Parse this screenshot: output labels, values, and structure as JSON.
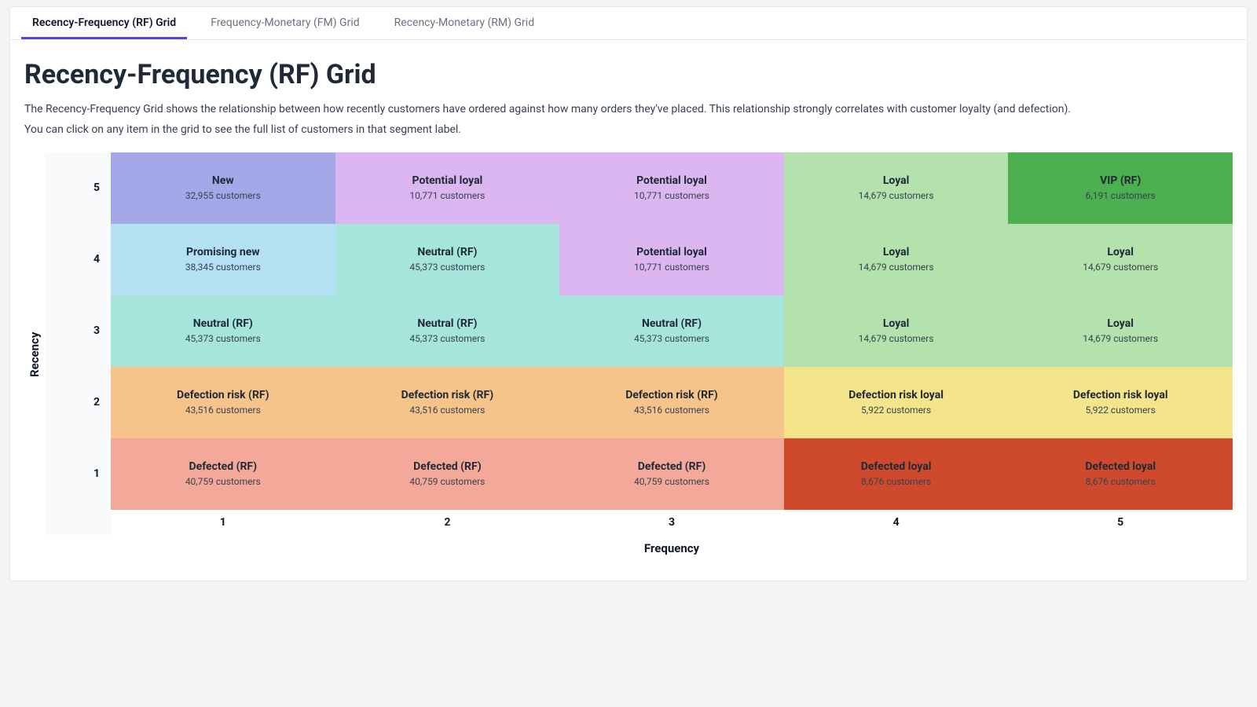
{
  "tabs": [
    {
      "label": "Recency-Frequency (RF) Grid",
      "active": true
    },
    {
      "label": "Frequency-Monetary (FM) Grid",
      "active": false
    },
    {
      "label": "Recency-Monetary (RM) Grid",
      "active": false
    }
  ],
  "title": "Recency-Frequency (RF) Grid",
  "description1": "The Recency-Frequency Grid shows the relationship between how recently customers have ordered against how many orders they've placed. This relationship strongly correlates with customer loyalty (and defection).",
  "description2": "You can click on any item in the grid to see the full list of customers in that segment label.",
  "axes": {
    "y_label": "Recency",
    "x_label": "Frequency",
    "row_levels": [
      "5",
      "4",
      "3",
      "2",
      "1"
    ],
    "col_levels": [
      "1",
      "2",
      "3",
      "4",
      "5"
    ]
  },
  "customers_suffix": " customers",
  "colors": {
    "new": "#a5a8e8",
    "potential_loyal": "#dbb6f0",
    "loyal": "#b4e2ad",
    "vip": "#4caf50",
    "promising_new": "#b3e0f2",
    "neutral": "#a6e5db",
    "defection_risk": "#f6c48a",
    "defection_risk_loyal": "#f5e58a",
    "defected": "#f4a89a",
    "defected_loyal": "#cf4a2c",
    "row_header_bg": "#f9fafb",
    "tab_active_border": "#4f46e5",
    "card_border": "#e5e7eb",
    "page_bg": "#f3f4f6"
  },
  "grid": {
    "rows": [
      [
        {
          "segment": "New",
          "count": "32,955",
          "color_key": "new"
        },
        {
          "segment": "Potential loyal",
          "count": "10,771",
          "color_key": "potential_loyal"
        },
        {
          "segment": "Potential loyal",
          "count": "10,771",
          "color_key": "potential_loyal"
        },
        {
          "segment": "Loyal",
          "count": "14,679",
          "color_key": "loyal"
        },
        {
          "segment": "VIP (RF)",
          "count": "6,191",
          "color_key": "vip"
        }
      ],
      [
        {
          "segment": "Promising new",
          "count": "38,345",
          "color_key": "promising_new"
        },
        {
          "segment": "Neutral (RF)",
          "count": "45,373",
          "color_key": "neutral"
        },
        {
          "segment": "Potential loyal",
          "count": "10,771",
          "color_key": "potential_loyal"
        },
        {
          "segment": "Loyal",
          "count": "14,679",
          "color_key": "loyal"
        },
        {
          "segment": "Loyal",
          "count": "14,679",
          "color_key": "loyal"
        }
      ],
      [
        {
          "segment": "Neutral (RF)",
          "count": "45,373",
          "color_key": "neutral"
        },
        {
          "segment": "Neutral (RF)",
          "count": "45,373",
          "color_key": "neutral"
        },
        {
          "segment": "Neutral (RF)",
          "count": "45,373",
          "color_key": "neutral"
        },
        {
          "segment": "Loyal",
          "count": "14,679",
          "color_key": "loyal"
        },
        {
          "segment": "Loyal",
          "count": "14,679",
          "color_key": "loyal"
        }
      ],
      [
        {
          "segment": "Defection risk (RF)",
          "count": "43,516",
          "color_key": "defection_risk"
        },
        {
          "segment": "Defection risk (RF)",
          "count": "43,516",
          "color_key": "defection_risk"
        },
        {
          "segment": "Defection risk (RF)",
          "count": "43,516",
          "color_key": "defection_risk"
        },
        {
          "segment": "Defection risk loyal",
          "count": "5,922",
          "color_key": "defection_risk_loyal"
        },
        {
          "segment": "Defection risk loyal",
          "count": "5,922",
          "color_key": "defection_risk_loyal"
        }
      ],
      [
        {
          "segment": "Defected (RF)",
          "count": "40,759",
          "color_key": "defected"
        },
        {
          "segment": "Defected (RF)",
          "count": "40,759",
          "color_key": "defected"
        },
        {
          "segment": "Defected (RF)",
          "count": "40,759",
          "color_key": "defected"
        },
        {
          "segment": "Defected loyal",
          "count": "8,676",
          "color_key": "defected_loyal"
        },
        {
          "segment": "Defected loyal",
          "count": "8,676",
          "color_key": "defected_loyal"
        }
      ]
    ]
  }
}
